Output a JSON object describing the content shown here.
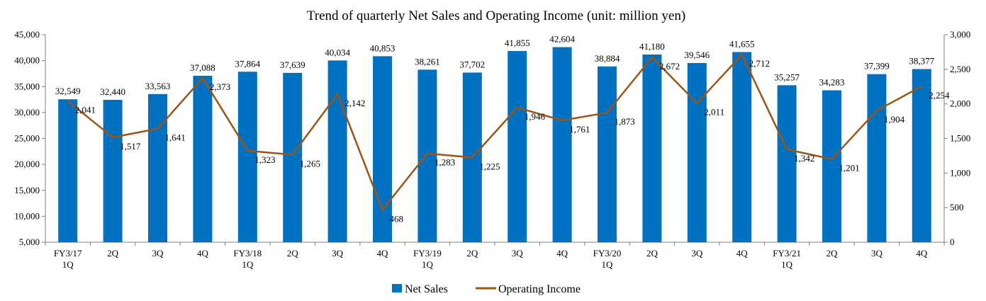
{
  "chart_data": {
    "type": "bar+line",
    "title": "Trend of quarterly Net Sales and Operating Income (unit: million yen)",
    "categories": [
      [
        "FY3/17",
        "1Q"
      ],
      [
        "2Q"
      ],
      [
        "3Q"
      ],
      [
        "4Q"
      ],
      [
        "FY3/18",
        "1Q"
      ],
      [
        "2Q"
      ],
      [
        "3Q"
      ],
      [
        "4Q"
      ],
      [
        "FY3/19",
        "1Q"
      ],
      [
        "2Q"
      ],
      [
        "3Q"
      ],
      [
        "4Q"
      ],
      [
        "FY3/20",
        "1Q"
      ],
      [
        "2Q"
      ],
      [
        "3Q"
      ],
      [
        "4Q"
      ],
      [
        "FY3/21",
        "1Q"
      ],
      [
        "2Q"
      ],
      [
        "3Q"
      ],
      [
        "4Q"
      ]
    ],
    "series": [
      {
        "name": "Net Sales",
        "type": "bar",
        "axis": "left",
        "color": "#0070C0",
        "values": [
          32549,
          32440,
          33563,
          37088,
          37864,
          37639,
          40034,
          40853,
          38261,
          37702,
          41855,
          42604,
          38884,
          41180,
          39546,
          41655,
          35257,
          34283,
          37399,
          38377
        ],
        "labels": [
          "32,549",
          "32,440",
          "33,563",
          "37,088",
          "37,864",
          "37,639",
          "40,034",
          "40,853",
          "38,261",
          "37,702",
          "41,855",
          "42,604",
          "38,884",
          "41,180",
          "39,546",
          "41,655",
          "35,257",
          "34,283",
          "37,399",
          "38,377"
        ]
      },
      {
        "name": "Operating Income",
        "type": "line",
        "axis": "right",
        "color": "#9C5515",
        "values": [
          2041,
          1517,
          1641,
          2373,
          1323,
          1265,
          2142,
          468,
          1283,
          1225,
          1946,
          1761,
          1873,
          2672,
          2011,
          2712,
          1342,
          1201,
          1904,
          2254
        ],
        "labels": [
          "2,041",
          "1,517",
          "1,641",
          "2,373",
          "1,323",
          "1,265",
          "2,142",
          "468",
          "1,283",
          "1,225",
          "1,946",
          "1,761",
          "1,873",
          "2,672",
          "2,011",
          "2,712",
          "1,342",
          "1,201",
          "1,904",
          "2,254"
        ]
      }
    ],
    "y_left": {
      "min": 5000,
      "max": 45000,
      "ticks": [
        5000,
        10000,
        15000,
        20000,
        25000,
        30000,
        35000,
        40000,
        45000
      ],
      "tick_labels": [
        "5,000",
        "10,000",
        "15,000",
        "20,000",
        "25,000",
        "30,000",
        "35,000",
        "40,000",
        "45,000"
      ]
    },
    "y_right": {
      "min": 0,
      "max": 3000,
      "ticks": [
        0,
        500,
        1000,
        1500,
        2000,
        2500,
        3000
      ],
      "tick_labels": [
        "0",
        "500",
        "1,000",
        "1,500",
        "2,000",
        "2,500",
        "3,000"
      ]
    },
    "grid": false,
    "legend": "bottom"
  }
}
